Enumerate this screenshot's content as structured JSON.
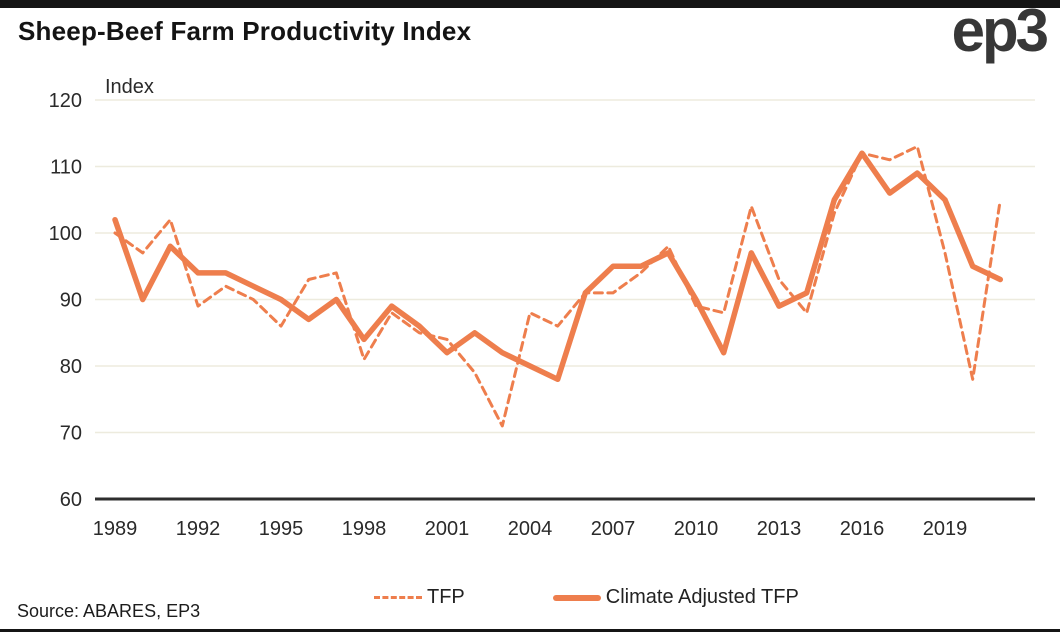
{
  "page": {
    "title": "Sheep-Beef Farm Productivity Index",
    "logo_text": "ep3",
    "source": "Source: ABARES, EP3"
  },
  "chart_data": {
    "type": "line",
    "title": "Sheep-Beef Farm Productivity Index",
    "xlabel": "",
    "ylabel": "Index",
    "ylim": [
      60,
      120
    ],
    "yticks": [
      60,
      70,
      80,
      90,
      100,
      110,
      120
    ],
    "xticks": [
      1989,
      1992,
      1995,
      1998,
      2001,
      2004,
      2007,
      2010,
      2013,
      2016,
      2019
    ],
    "grid": true,
    "legend_position": "bottom",
    "x": [
      1989,
      1990,
      1991,
      1992,
      1993,
      1994,
      1995,
      1996,
      1997,
      1998,
      1999,
      2000,
      2001,
      2002,
      2003,
      2004,
      2005,
      2006,
      2007,
      2008,
      2009,
      2010,
      2011,
      2012,
      2013,
      2014,
      2015,
      2016,
      2017,
      2018,
      2019,
      2020,
      2021
    ],
    "series": [
      {
        "name": "TFP",
        "style": "dashed",
        "values": [
          100,
          97,
          102,
          89,
          92,
          90,
          86,
          93,
          94,
          81,
          88,
          85,
          84,
          79,
          71,
          88,
          86,
          91,
          91,
          94,
          98,
          89,
          88,
          104,
          93,
          88,
          103,
          112,
          111,
          113,
          97,
          78,
          105
        ]
      },
      {
        "name": "Climate Adjusted TFP",
        "style": "solid",
        "values": [
          102,
          90,
          98,
          94,
          94,
          92,
          90,
          87,
          90,
          84,
          89,
          86,
          82,
          85,
          82,
          80,
          78,
          91,
          95,
          95,
          97,
          90,
          82,
          97,
          89,
          91,
          105,
          112,
          106,
          109,
          105,
          95,
          93
        ]
      }
    ],
    "colors": {
      "line": "#EE7E4D",
      "grid": "#EDEBDE",
      "axis": "#2E2E2E",
      "tick_text": "#2A2A2A"
    }
  }
}
